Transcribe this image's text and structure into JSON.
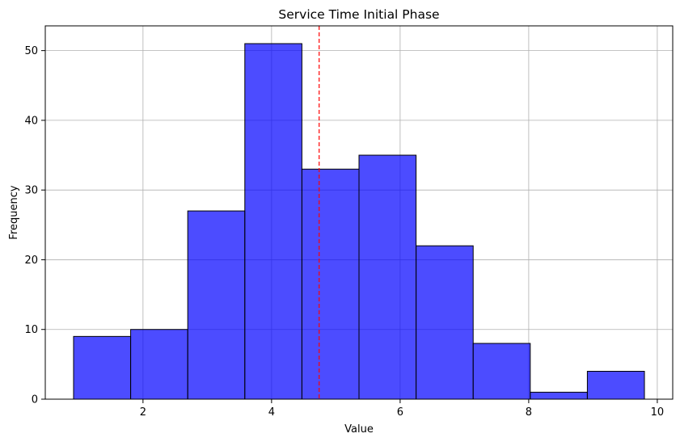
{
  "chart_data": {
    "type": "bar",
    "title": "Service Time Initial Phase",
    "xlabel": "Value",
    "ylabel": "Frequency",
    "bin_edges": [
      0.92,
      1.808,
      2.696,
      3.584,
      4.472,
      5.36,
      6.248,
      7.136,
      8.024,
      8.912,
      9.8
    ],
    "values": [
      9,
      10,
      27,
      51,
      33,
      35,
      22,
      8,
      1,
      4
    ],
    "xlim": [
      0.48,
      10.24
    ],
    "ylim": [
      0,
      53.55
    ],
    "x_ticks": [
      2,
      4,
      6,
      8,
      10
    ],
    "y_ticks": [
      0,
      10,
      20,
      30,
      40,
      50
    ],
    "mean_line_x": 4.74,
    "grid": true,
    "colors": {
      "bar_fill": "#0000ff",
      "bar_opacity": 0.7,
      "bar_edge": "#000000",
      "mean_line": "#ff0000",
      "grid": "#b0b0b0"
    }
  }
}
